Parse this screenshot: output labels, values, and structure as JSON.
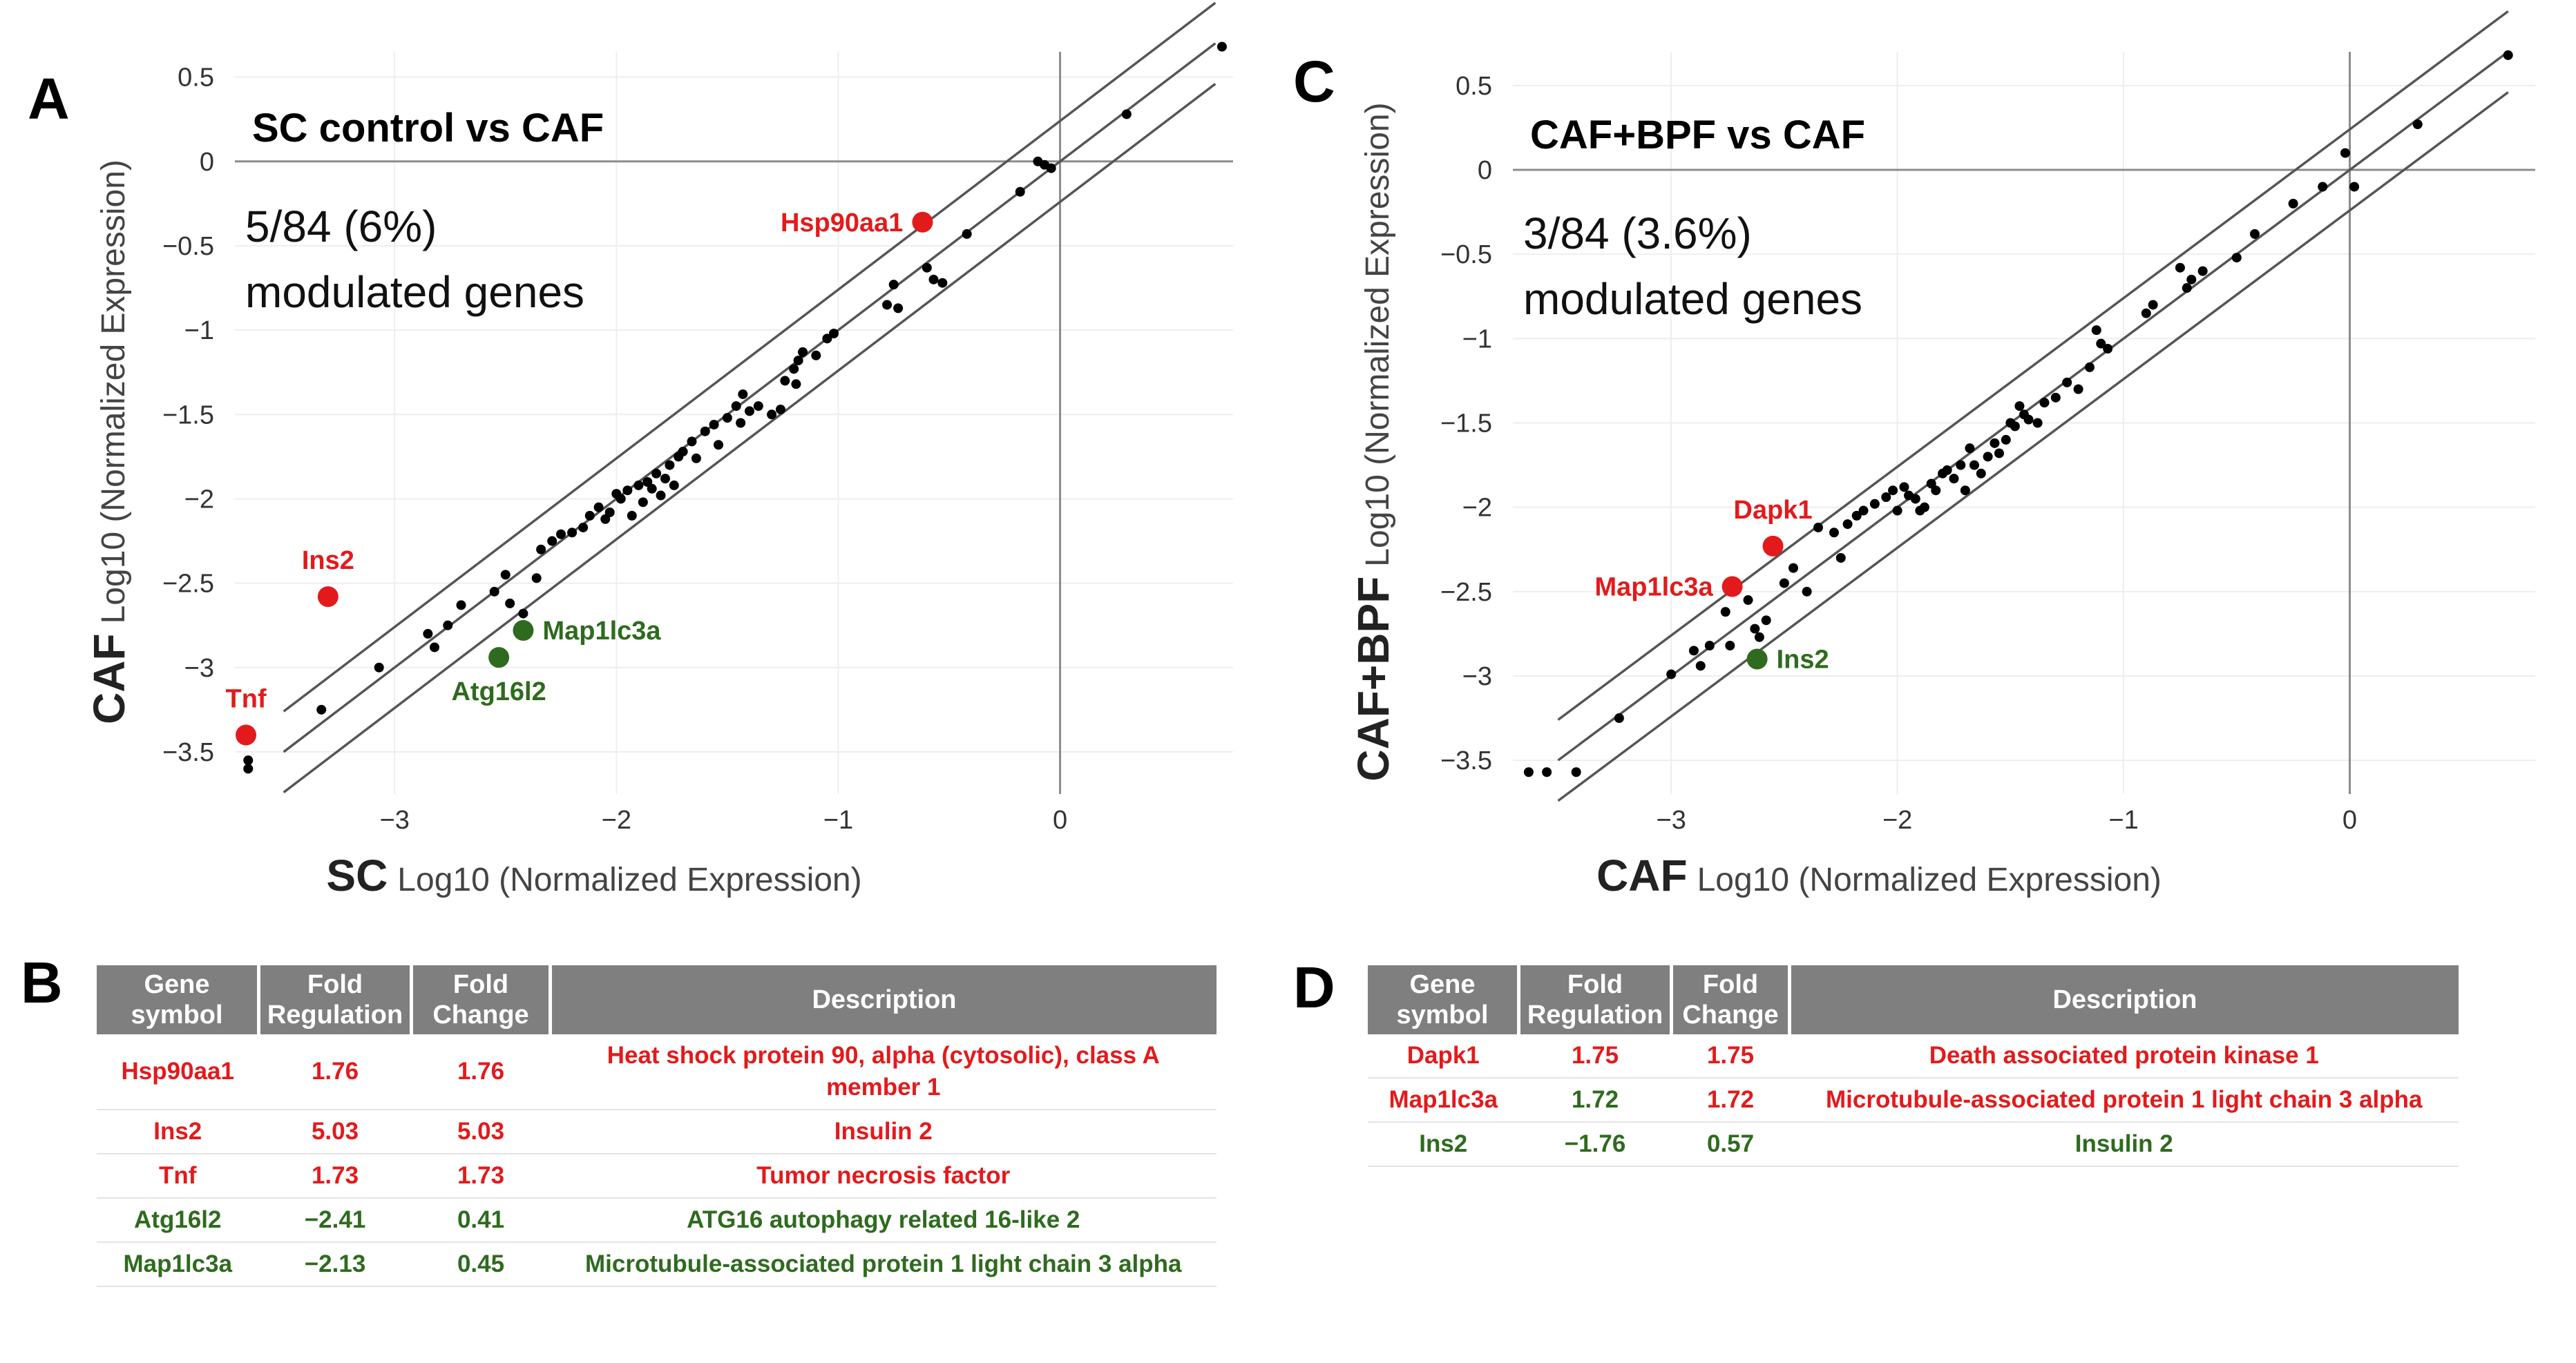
{
  "colors": {
    "red": "#e31a1c",
    "green": "#2e6b1e",
    "point": "#000000",
    "header": "#7f7f7f"
  },
  "panels": {
    "A": {
      "letter": "A"
    },
    "B": {
      "letter": "B"
    },
    "C": {
      "letter": "C"
    },
    "D": {
      "letter": "D"
    }
  },
  "chart_data": [
    {
      "type": "scatter",
      "panel": "A",
      "title": "SC control vs CAF",
      "annotation_line1": "5/84 (6%)",
      "annotation_line2": "modulated genes",
      "xlabel_bold": "SC",
      "xlabel": "Log10 (Normalized Expression)",
      "ylabel_bold": "CAF",
      "ylabel": "Log10 (Normalized Expression)",
      "xlim": [
        -3.72,
        0.78
      ],
      "ylim": [
        -3.75,
        0.65
      ],
      "xticks": [
        -3,
        -2,
        -1,
        0
      ],
      "xtick_labels": [
        "−3",
        "−2",
        "−1",
        "0"
      ],
      "yticks": [
        0.5,
        0,
        -0.5,
        -1,
        -1.5,
        -2,
        -2.5,
        -3,
        -3.5
      ],
      "ytick_labels": [
        "0.5",
        "0",
        "−0.5",
        "−1",
        "−1.5",
        "−2",
        "−2.5",
        "−3",
        "−3.5"
      ],
      "reference_lines": [
        {
          "name": "upper-threshold",
          "offset": 0.24
        },
        {
          "name": "equality",
          "offset": 0
        },
        {
          "name": "lower-threshold",
          "offset": -0.24
        }
      ],
      "points": [
        [
          -3.66,
          -3.55
        ],
        [
          -3.66,
          -3.6
        ],
        [
          -3.33,
          -3.25
        ],
        [
          -3.07,
          -3.0
        ],
        [
          -2.85,
          -2.8
        ],
        [
          -2.82,
          -2.88
        ],
        [
          -2.76,
          -2.75
        ],
        [
          -2.7,
          -2.63
        ],
        [
          -2.55,
          -2.55
        ],
        [
          -2.5,
          -2.45
        ],
        [
          -2.48,
          -2.62
        ],
        [
          -2.42,
          -2.68
        ],
        [
          -2.36,
          -2.47
        ],
        [
          -2.34,
          -2.3
        ],
        [
          -2.29,
          -2.25
        ],
        [
          -2.25,
          -2.21
        ],
        [
          -2.2,
          -2.2
        ],
        [
          -2.15,
          -2.17
        ],
        [
          -2.12,
          -2.1
        ],
        [
          -2.08,
          -2.05
        ],
        [
          -2.05,
          -2.12
        ],
        [
          -2.03,
          -2.08
        ],
        [
          -2.0,
          -1.97
        ],
        [
          -1.98,
          -2.0
        ],
        [
          -1.95,
          -1.95
        ],
        [
          -1.93,
          -2.1
        ],
        [
          -1.9,
          -1.92
        ],
        [
          -1.88,
          -2.02
        ],
        [
          -1.86,
          -1.9
        ],
        [
          -1.84,
          -1.94
        ],
        [
          -1.82,
          -1.85
        ],
        [
          -1.8,
          -1.98
        ],
        [
          -1.78,
          -1.88
        ],
        [
          -1.76,
          -1.8
        ],
        [
          -1.74,
          -1.92
        ],
        [
          -1.72,
          -1.75
        ],
        [
          -1.7,
          -1.72
        ],
        [
          -1.66,
          -1.66
        ],
        [
          -1.64,
          -1.76
        ],
        [
          -1.6,
          -1.6
        ],
        [
          -1.56,
          -1.56
        ],
        [
          -1.54,
          -1.68
        ],
        [
          -1.5,
          -1.52
        ],
        [
          -1.46,
          -1.45
        ],
        [
          -1.44,
          -1.55
        ],
        [
          -1.43,
          -1.38
        ],
        [
          -1.4,
          -1.48
        ],
        [
          -1.36,
          -1.45
        ],
        [
          -1.3,
          -1.5
        ],
        [
          -1.26,
          -1.47
        ],
        [
          -1.24,
          -1.3
        ],
        [
          -1.2,
          -1.23
        ],
        [
          -1.19,
          -1.32
        ],
        [
          -1.18,
          -1.18
        ],
        [
          -1.16,
          -1.13
        ],
        [
          -1.1,
          -1.15
        ],
        [
          -1.05,
          -1.05
        ],
        [
          -1.02,
          -1.02
        ],
        [
          -0.78,
          -0.85
        ],
        [
          -0.75,
          -0.73
        ],
        [
          -0.73,
          -0.87
        ],
        [
          -0.6,
          -0.63
        ],
        [
          -0.57,
          -0.7
        ],
        [
          -0.53,
          -0.72
        ],
        [
          -0.42,
          -0.43
        ],
        [
          -0.18,
          -0.18
        ],
        [
          -0.1,
          0.0
        ],
        [
          -0.07,
          -0.02
        ],
        [
          -0.04,
          -0.04
        ],
        [
          0.3,
          0.28
        ],
        [
          0.73,
          0.68
        ]
      ],
      "highlighted": [
        {
          "label": "Hsp90aa1",
          "x": -0.62,
          "y": -0.36,
          "color": "red",
          "label_side": "left"
        },
        {
          "label": "Ins2",
          "x": -3.3,
          "y": -2.58,
          "color": "red",
          "label_side": "top"
        },
        {
          "label": "Tnf",
          "x": -3.67,
          "y": -3.4,
          "color": "red",
          "label_side": "top"
        },
        {
          "label": "Map1lc3a",
          "x": -2.42,
          "y": -2.78,
          "color": "green",
          "label_side": "right"
        },
        {
          "label": "Atg16l2",
          "x": -2.53,
          "y": -2.94,
          "color": "green",
          "label_side": "bottom"
        }
      ]
    },
    {
      "type": "scatter",
      "panel": "C",
      "title": "CAF+BPF vs CAF",
      "annotation_line1": "3/84 (3.6%)",
      "annotation_line2": "modulated genes",
      "xlabel_bold": "CAF",
      "xlabel": "Log10 (Normalized Expression)",
      "ylabel_bold": "CAF+BPF",
      "ylabel": "Log10 (Normalized Expression)",
      "xlim": [
        -3.7,
        0.82
      ],
      "ylim": [
        -3.7,
        0.7
      ],
      "xticks": [
        -3,
        -2,
        -1,
        0
      ],
      "xtick_labels": [
        "−3",
        "−2",
        "−1",
        "0"
      ],
      "yticks": [
        0.5,
        0,
        -0.5,
        -1,
        -1.5,
        -2,
        -2.5,
        -3,
        -3.5
      ],
      "ytick_labels": [
        "0.5",
        "0",
        "−0.5",
        "−1",
        "−1.5",
        "−2",
        "−2.5",
        "−3",
        "−3.5"
      ],
      "reference_lines": [
        {
          "name": "upper-threshold",
          "offset": 0.24
        },
        {
          "name": "equality",
          "offset": 0
        },
        {
          "name": "lower-threshold",
          "offset": -0.24
        }
      ],
      "points": [
        [
          -3.63,
          -3.57
        ],
        [
          -3.55,
          -3.57
        ],
        [
          -3.42,
          -3.57
        ],
        [
          -3.23,
          -3.25
        ],
        [
          -3.0,
          -2.99
        ],
        [
          -2.9,
          -2.85
        ],
        [
          -2.87,
          -2.94
        ],
        [
          -2.83,
          -2.82
        ],
        [
          -2.76,
          -2.62
        ],
        [
          -2.74,
          -2.82
        ],
        [
          -2.66,
          -2.55
        ],
        [
          -2.63,
          -2.72
        ],
        [
          -2.61,
          -2.77
        ],
        [
          -2.58,
          -2.67
        ],
        [
          -2.5,
          -2.45
        ],
        [
          -2.46,
          -2.36
        ],
        [
          -2.4,
          -2.5
        ],
        [
          -2.35,
          -2.12
        ],
        [
          -2.28,
          -2.15
        ],
        [
          -2.25,
          -2.3
        ],
        [
          -2.22,
          -2.1
        ],
        [
          -2.18,
          -2.05
        ],
        [
          -2.15,
          -2.02
        ],
        [
          -2.1,
          -1.98
        ],
        [
          -2.05,
          -1.94
        ],
        [
          -2.02,
          -1.9
        ],
        [
          -2.0,
          -2.02
        ],
        [
          -1.97,
          -1.88
        ],
        [
          -1.95,
          -1.93
        ],
        [
          -1.92,
          -1.95
        ],
        [
          -1.9,
          -2.02
        ],
        [
          -1.88,
          -2.0
        ],
        [
          -1.85,
          -1.86
        ],
        [
          -1.83,
          -1.9
        ],
        [
          -1.8,
          -1.8
        ],
        [
          -1.78,
          -1.78
        ],
        [
          -1.75,
          -1.83
        ],
        [
          -1.72,
          -1.75
        ],
        [
          -1.7,
          -1.9
        ],
        [
          -1.68,
          -1.65
        ],
        [
          -1.66,
          -1.75
        ],
        [
          -1.63,
          -1.8
        ],
        [
          -1.6,
          -1.7
        ],
        [
          -1.57,
          -1.62
        ],
        [
          -1.55,
          -1.68
        ],
        [
          -1.52,
          -1.6
        ],
        [
          -1.5,
          -1.5
        ],
        [
          -1.48,
          -1.52
        ],
        [
          -1.46,
          -1.4
        ],
        [
          -1.44,
          -1.45
        ],
        [
          -1.42,
          -1.48
        ],
        [
          -1.38,
          -1.5
        ],
        [
          -1.35,
          -1.38
        ],
        [
          -1.3,
          -1.35
        ],
        [
          -1.25,
          -1.26
        ],
        [
          -1.2,
          -1.3
        ],
        [
          -1.15,
          -1.17
        ],
        [
          -1.12,
          -0.95
        ],
        [
          -1.1,
          -1.03
        ],
        [
          -1.07,
          -1.06
        ],
        [
          -0.9,
          -0.85
        ],
        [
          -0.87,
          -0.8
        ],
        [
          -0.75,
          -0.58
        ],
        [
          -0.72,
          -0.7
        ],
        [
          -0.7,
          -0.65
        ],
        [
          -0.65,
          -0.6
        ],
        [
          -0.5,
          -0.52
        ],
        [
          -0.42,
          -0.38
        ],
        [
          -0.25,
          -0.2
        ],
        [
          -0.12,
          -0.1
        ],
        [
          -0.02,
          0.1
        ],
        [
          0.02,
          -0.1
        ],
        [
          0.3,
          0.27
        ],
        [
          0.7,
          0.68
        ]
      ],
      "highlighted": [
        {
          "label": "Dapk1",
          "x": -2.55,
          "y": -2.23,
          "color": "red",
          "label_side": "top"
        },
        {
          "label": "Map1lc3a",
          "x": -2.73,
          "y": -2.47,
          "color": "red",
          "label_side": "left"
        },
        {
          "label": "Ins2",
          "x": -2.62,
          "y": -2.9,
          "color": "green",
          "label_side": "right"
        }
      ]
    }
  ],
  "table_B": {
    "headers": [
      [
        "Gene",
        "symbol"
      ],
      [
        "Fold",
        "Regulation"
      ],
      [
        "Fold",
        "Change"
      ],
      [
        "Description",
        ""
      ]
    ],
    "rows": [
      {
        "gene": "Hsp90aa1",
        "regulation": "1.76",
        "change": "1.76",
        "desc1": "Heat shock protein 90, alpha (cytosolic), class A",
        "desc2": "member 1",
        "gene_color": "red",
        "reg_color": "red",
        "chg_color": "red",
        "desc_color": "red"
      },
      {
        "gene": "Ins2",
        "regulation": "5.03",
        "change": "5.03",
        "desc1": "Insulin 2",
        "desc2": "",
        "gene_color": "red",
        "reg_color": "red",
        "chg_color": "red",
        "desc_color": "red"
      },
      {
        "gene": "Tnf",
        "regulation": "1.73",
        "change": "1.73",
        "desc1": "Tumor necrosis factor",
        "desc2": "",
        "gene_color": "red",
        "reg_color": "red",
        "chg_color": "red",
        "desc_color": "red"
      },
      {
        "gene": "Atg16l2",
        "regulation": "−2.41",
        "change": "0.41",
        "desc1": "ATG16 autophagy related 16-like 2",
        "desc2": "",
        "gene_color": "green",
        "reg_color": "green",
        "chg_color": "green",
        "desc_color": "green"
      },
      {
        "gene": "Map1lc3a",
        "regulation": "−2.13",
        "change": "0.45",
        "desc1": "Microtubule-associated protein 1 light chain 3 alpha",
        "desc2": "",
        "gene_color": "green",
        "reg_color": "green",
        "chg_color": "green",
        "desc_color": "green"
      }
    ]
  },
  "table_D": {
    "headers": [
      [
        "Gene",
        "symbol"
      ],
      [
        "Fold",
        "Regulation"
      ],
      [
        "Fold",
        "Change"
      ],
      [
        "Description",
        ""
      ]
    ],
    "rows": [
      {
        "gene": "Dapk1",
        "regulation": "1.75",
        "change": "1.75",
        "desc1": "Death associated protein kinase 1",
        "desc2": "",
        "gene_color": "red",
        "reg_color": "red",
        "chg_color": "red",
        "desc_color": "red"
      },
      {
        "gene": "Map1lc3a",
        "regulation": "1.72",
        "change": "1.72",
        "desc1": "Microtubule-associated protein 1 light chain 3 alpha",
        "desc2": "",
        "gene_color": "red",
        "reg_color": "green",
        "chg_color": "red",
        "desc_color": "red"
      },
      {
        "gene": "Ins2",
        "regulation": "−1.76",
        "change": "0.57",
        "desc1": "Insulin 2",
        "desc2": "",
        "gene_color": "green",
        "reg_color": "green",
        "chg_color": "green",
        "desc_color": "green"
      }
    ]
  }
}
